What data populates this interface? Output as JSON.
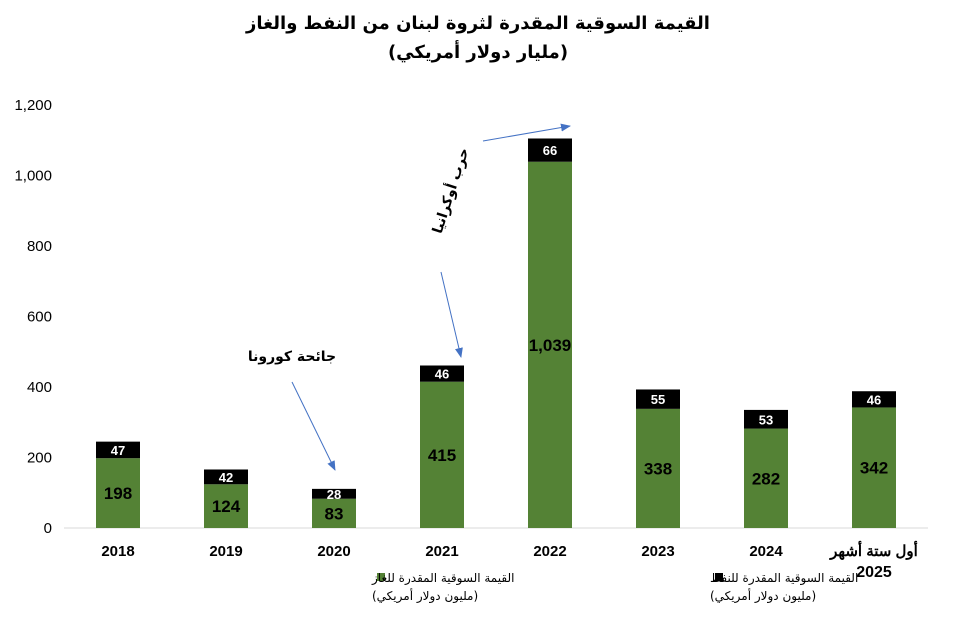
{
  "chart_data": {
    "type": "bar",
    "stacked": true,
    "title": "القيمة السوقية المقدرة لثروة لبنان من النفط والغاز",
    "subtitle": "(مليار دولار أمريكي)",
    "categories": [
      "2018",
      "2019",
      "2020",
      "2021",
      "2022",
      "2023",
      "2024",
      "أول ستة أشهر 2025"
    ],
    "series": [
      {
        "name": "القيمة السوقية  المقدرة للغاز (مليون دولار أمريكي)",
        "color": "#548235",
        "values": [
          198,
          124,
          83,
          415,
          1039,
          338,
          282,
          342
        ],
        "labels": [
          "198",
          "124",
          "83",
          "415",
          "1,039",
          "338",
          "282",
          "342"
        ]
      },
      {
        "name": "القيمة السوقية  المقدرة للنفط (مليون دولار أمريكي)",
        "color": "#000000",
        "values": [
          47,
          42,
          28,
          46,
          66,
          55,
          53,
          46
        ],
        "labels": [
          "47",
          "42",
          "28",
          "46",
          "66",
          "55",
          "53",
          "46"
        ]
      }
    ],
    "ylim": [
      0,
      1200
    ],
    "yticks": [
      "0",
      "200",
      "400",
      "600",
      "800",
      "1,000",
      "1,200"
    ],
    "legend": [
      {
        "line1": "القيمة السوقية  المقدرة للغاز",
        "line2": "(مليون دولار أمريكي)",
        "color": "#548235"
      },
      {
        "line1": "القيمة السوقية  المقدرة للنفط",
        "line2": "(مليون دولار أمريكي)",
        "color": "#000000"
      }
    ],
    "annotations": [
      {
        "text": "جائحة كورونا",
        "category": "2020"
      },
      {
        "text": "حرب أوكرانيا",
        "category": "2021"
      }
    ],
    "grid": false,
    "arrow_color": "#4472C4"
  }
}
